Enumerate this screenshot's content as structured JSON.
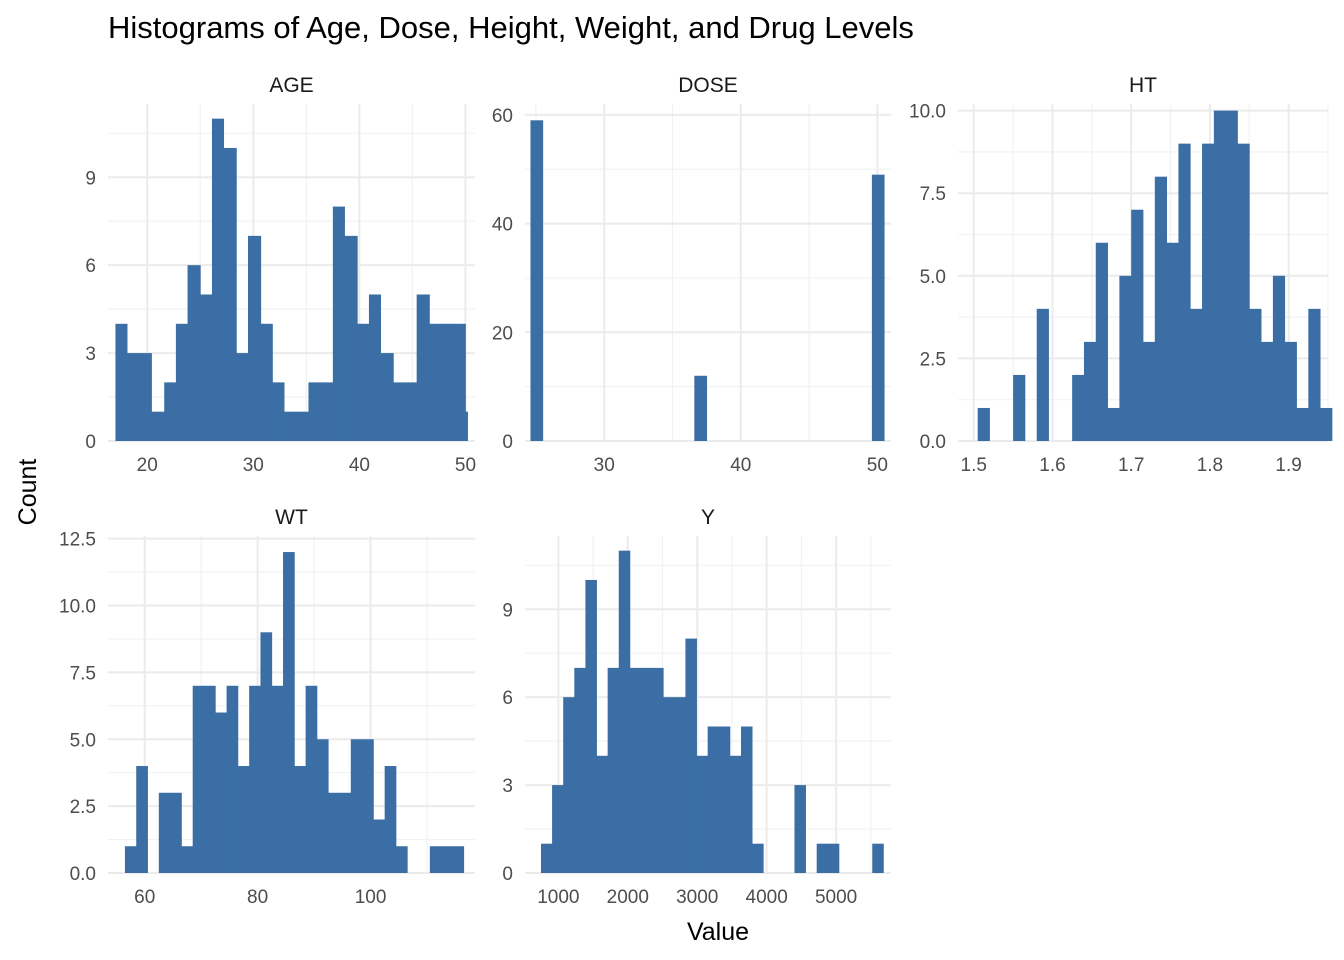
{
  "chart_data": {
    "type": "histogram",
    "title": "Histograms of Age, Dose, Height, Weight, and Drug Levels",
    "xlabel": "Value",
    "ylabel": "Count",
    "bar_color": "#3a6ea5",
    "grid": true,
    "panels": [
      {
        "name": "AGE",
        "x_ticks": [
          20,
          30,
          40,
          50
        ],
        "y_ticks": [
          0,
          3,
          6,
          9
        ],
        "xlim": [
          16.3,
          50.9
        ],
        "ylim": [
          0,
          11.5
        ],
        "bins": [
          {
            "x0": 17.0,
            "x1": 18.1,
            "count": 4
          },
          {
            "x0": 18.1,
            "x1": 19.3,
            "count": 3
          },
          {
            "x0": 19.3,
            "x1": 20.4,
            "count": 3
          },
          {
            "x0": 20.4,
            "x1": 21.6,
            "count": 1
          },
          {
            "x0": 21.6,
            "x1": 22.7,
            "count": 2
          },
          {
            "x0": 22.7,
            "x1": 23.8,
            "count": 4
          },
          {
            "x0": 23.8,
            "x1": 25.0,
            "count": 6
          },
          {
            "x0": 25.0,
            "x1": 26.1,
            "count": 5
          },
          {
            "x0": 26.1,
            "x1": 27.2,
            "count": 11
          },
          {
            "x0": 27.2,
            "x1": 28.4,
            "count": 10
          },
          {
            "x0": 28.4,
            "x1": 29.5,
            "count": 3
          },
          {
            "x0": 29.5,
            "x1": 30.7,
            "count": 7
          },
          {
            "x0": 30.7,
            "x1": 31.8,
            "count": 4
          },
          {
            "x0": 31.8,
            "x1": 32.9,
            "count": 2
          },
          {
            "x0": 32.9,
            "x1": 34.1,
            "count": 1
          },
          {
            "x0": 34.1,
            "x1": 35.2,
            "count": 1
          },
          {
            "x0": 35.2,
            "x1": 36.3,
            "count": 2
          },
          {
            "x0": 36.3,
            "x1": 37.5,
            "count": 2
          },
          {
            "x0": 37.5,
            "x1": 38.6,
            "count": 8
          },
          {
            "x0": 38.6,
            "x1": 39.8,
            "count": 7
          },
          {
            "x0": 39.8,
            "x1": 40.9,
            "count": 4
          },
          {
            "x0": 40.9,
            "x1": 42.0,
            "count": 5
          },
          {
            "x0": 42.0,
            "x1": 43.2,
            "count": 3
          },
          {
            "x0": 43.2,
            "x1": 44.3,
            "count": 2
          },
          {
            "x0": 44.3,
            "x1": 45.4,
            "count": 2
          },
          {
            "x0": 45.4,
            "x1": 46.6,
            "count": 5
          },
          {
            "x0": 46.6,
            "x1": 47.7,
            "count": 4
          },
          {
            "x0": 47.7,
            "x1": 48.9,
            "count": 4
          },
          {
            "x0": 48.9,
            "x1": 50.0,
            "count": 4
          },
          {
            "x0": 50.0,
            "x1": 50.2,
            "count": 1
          }
        ]
      },
      {
        "name": "DOSE",
        "x_ticks": [
          30,
          40,
          50
        ],
        "y_ticks": [
          0,
          20,
          40,
          60
        ],
        "xlim": [
          24.2,
          51.0
        ],
        "ylim": [
          0,
          62
        ],
        "bins": [
          {
            "x0": 24.6,
            "x1": 25.5,
            "count": 59
          },
          {
            "x0": 36.6,
            "x1": 37.5,
            "count": 12
          },
          {
            "x0": 49.6,
            "x1": 50.5,
            "count": 49
          }
        ]
      },
      {
        "name": "HT",
        "x_ticks": [
          1.5,
          1.6,
          1.7,
          1.8,
          1.9
        ],
        "x_tick_labels": [
          "1.5",
          "1.6",
          "1.7",
          "1.8",
          "1.9"
        ],
        "y_ticks": [
          0,
          2.5,
          5,
          7.5,
          10
        ],
        "y_tick_labels": [
          "0.0",
          "2.5",
          "5.0",
          "7.5",
          "10.0"
        ],
        "xlim": [
          1.48,
          1.95
        ],
        "ylim": [
          0,
          10.2
        ],
        "bins": [
          {
            "x0": 1.505,
            "x1": 1.52,
            "count": 1
          },
          {
            "x0": 1.55,
            "x1": 1.565,
            "count": 2
          },
          {
            "x0": 1.58,
            "x1": 1.595,
            "count": 4
          },
          {
            "x0": 1.625,
            "x1": 1.64,
            "count": 2
          },
          {
            "x0": 1.64,
            "x1": 1.655,
            "count": 3
          },
          {
            "x0": 1.655,
            "x1": 1.67,
            "count": 6
          },
          {
            "x0": 1.67,
            "x1": 1.685,
            "count": 1
          },
          {
            "x0": 1.685,
            "x1": 1.7,
            "count": 5
          },
          {
            "x0": 1.7,
            "x1": 1.715,
            "count": 7
          },
          {
            "x0": 1.715,
            "x1": 1.73,
            "count": 3
          },
          {
            "x0": 1.73,
            "x1": 1.745,
            "count": 8
          },
          {
            "x0": 1.745,
            "x1": 1.76,
            "count": 6
          },
          {
            "x0": 1.76,
            "x1": 1.775,
            "count": 9
          },
          {
            "x0": 1.775,
            "x1": 1.79,
            "count": 4
          },
          {
            "x0": 1.79,
            "x1": 1.805,
            "count": 9
          },
          {
            "x0": 1.805,
            "x1": 1.82,
            "count": 10
          },
          {
            "x0": 1.82,
            "x1": 1.835,
            "count": 10
          },
          {
            "x0": 1.835,
            "x1": 1.85,
            "count": 9
          },
          {
            "x0": 1.85,
            "x1": 1.865,
            "count": 4
          },
          {
            "x0": 1.865,
            "x1": 1.88,
            "count": 3
          },
          {
            "x0": 1.88,
            "x1": 1.895,
            "count": 5
          },
          {
            "x0": 1.895,
            "x1": 1.91,
            "count": 3
          },
          {
            "x0": 1.91,
            "x1": 1.925,
            "count": 1
          },
          {
            "x0": 1.925,
            "x1": 1.94,
            "count": 4
          },
          {
            "x0": 1.94,
            "x1": 1.955,
            "count": 1
          }
        ]
      },
      {
        "name": "WT",
        "x_ticks": [
          60,
          80,
          100
        ],
        "y_ticks": [
          0,
          2.5,
          5,
          7.5,
          10,
          12.5
        ],
        "y_tick_labels": [
          "0.0",
          "2.5",
          "5.0",
          "7.5",
          "10.0",
          "12.5"
        ],
        "xlim": [
          53.5,
          118.5
        ],
        "ylim": [
          0,
          12.6
        ],
        "bins": [
          {
            "x0": 56.5,
            "x1": 58.5,
            "count": 1
          },
          {
            "x0": 58.5,
            "x1": 60.5,
            "count": 4
          },
          {
            "x0": 62.5,
            "x1": 64.5,
            "count": 3
          },
          {
            "x0": 64.5,
            "x1": 66.5,
            "count": 3
          },
          {
            "x0": 66.5,
            "x1": 68.5,
            "count": 1
          },
          {
            "x0": 68.5,
            "x1": 70.5,
            "count": 7
          },
          {
            "x0": 70.5,
            "x1": 72.5,
            "count": 7
          },
          {
            "x0": 72.5,
            "x1": 74.5,
            "count": 6
          },
          {
            "x0": 74.5,
            "x1": 76.5,
            "count": 7
          },
          {
            "x0": 76.5,
            "x1": 78.5,
            "count": 4
          },
          {
            "x0": 78.5,
            "x1": 80.5,
            "count": 7
          },
          {
            "x0": 80.5,
            "x1": 82.5,
            "count": 9
          },
          {
            "x0": 82.5,
            "x1": 84.5,
            "count": 7
          },
          {
            "x0": 84.5,
            "x1": 86.5,
            "count": 12
          },
          {
            "x0": 86.5,
            "x1": 88.5,
            "count": 4
          },
          {
            "x0": 88.5,
            "x1": 90.5,
            "count": 7
          },
          {
            "x0": 90.5,
            "x1": 92.5,
            "count": 5
          },
          {
            "x0": 92.5,
            "x1": 94.5,
            "count": 3
          },
          {
            "x0": 94.5,
            "x1": 96.5,
            "count": 3
          },
          {
            "x0": 96.5,
            "x1": 98.5,
            "count": 5
          },
          {
            "x0": 98.5,
            "x1": 100.5,
            "count": 5
          },
          {
            "x0": 100.5,
            "x1": 102.5,
            "count": 2
          },
          {
            "x0": 102.5,
            "x1": 104.5,
            "count": 4
          },
          {
            "x0": 104.5,
            "x1": 106.5,
            "count": 1
          },
          {
            "x0": 110.5,
            "x1": 112.5,
            "count": 1
          },
          {
            "x0": 112.5,
            "x1": 114.5,
            "count": 1
          },
          {
            "x0": 114.5,
            "x1": 116.5,
            "count": 1
          }
        ]
      },
      {
        "name": "Y",
        "x_ticks": [
          1000,
          2000,
          3000,
          4000,
          5000
        ],
        "y_ticks": [
          0,
          3,
          6,
          9
        ],
        "xlim": [
          520,
          5790
        ],
        "ylim": [
          0,
          11.5
        ],
        "bins": [
          {
            "x0": 750,
            "x1": 910,
            "count": 1
          },
          {
            "x0": 910,
            "x1": 1070,
            "count": 3
          },
          {
            "x0": 1070,
            "x1": 1230,
            "count": 6
          },
          {
            "x0": 1230,
            "x1": 1390,
            "count": 7
          },
          {
            "x0": 1390,
            "x1": 1550,
            "count": 10
          },
          {
            "x0": 1550,
            "x1": 1710,
            "count": 4
          },
          {
            "x0": 1710,
            "x1": 1870,
            "count": 7
          },
          {
            "x0": 1870,
            "x1": 2030,
            "count": 11
          },
          {
            "x0": 2030,
            "x1": 2190,
            "count": 7
          },
          {
            "x0": 2190,
            "x1": 2350,
            "count": 7
          },
          {
            "x0": 2350,
            "x1": 2510,
            "count": 7
          },
          {
            "x0": 2510,
            "x1": 2670,
            "count": 6
          },
          {
            "x0": 2670,
            "x1": 2830,
            "count": 6
          },
          {
            "x0": 2830,
            "x1": 2990,
            "count": 8
          },
          {
            "x0": 2990,
            "x1": 3150,
            "count": 4
          },
          {
            "x0": 3150,
            "x1": 3310,
            "count": 5
          },
          {
            "x0": 3310,
            "x1": 3470,
            "count": 5
          },
          {
            "x0": 3470,
            "x1": 3630,
            "count": 4
          },
          {
            "x0": 3630,
            "x1": 3790,
            "count": 5
          },
          {
            "x0": 3790,
            "x1": 3950,
            "count": 1
          },
          {
            "x0": 4400,
            "x1": 4560,
            "count": 3
          },
          {
            "x0": 4720,
            "x1": 4880,
            "count": 1
          },
          {
            "x0": 4880,
            "x1": 5040,
            "count": 1
          },
          {
            "x0": 5520,
            "x1": 5680,
            "count": 1
          }
        ]
      }
    ]
  }
}
